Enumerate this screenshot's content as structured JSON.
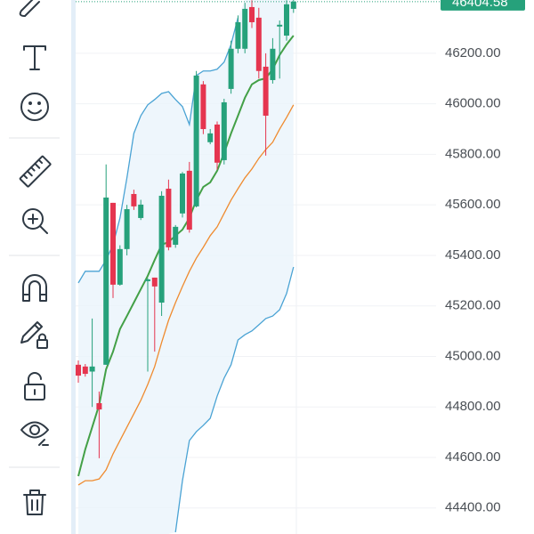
{
  "chart_data": {
    "type": "candlestick",
    "open": [
      44967,
      44960,
      44940,
      44815,
      44967,
      45608,
      45284,
      45425,
      45643,
      45548,
      45298,
      45312,
      45213,
      45664,
      45442,
      45566,
      45735,
      45594,
      46077,
      45848,
      45918,
      45777,
      46059,
      46218,
      46218,
      46383,
      46341,
      46147,
      46094,
      46306,
      46270,
      46376
    ],
    "high": [
      44984,
      44970,
      45150,
      44861,
      45760,
      45608,
      45440,
      45600,
      45660,
      45620,
      45310,
      45312,
      45654,
      45700,
      45520,
      45730,
      45770,
      46130,
      46090,
      45900,
      45930,
      46020,
      46250,
      46350,
      46400,
      46410,
      46380,
      46200,
      46260,
      46330,
      46410,
      46420
    ],
    "low": [
      44896,
      44920,
      44800,
      44597,
      44967,
      45231,
      45280,
      45400,
      45580,
      45540,
      44940,
      45019,
      45160,
      45420,
      45430,
      45550,
      45490,
      45590,
      45880,
      45840,
      45740,
      45760,
      46040,
      46200,
      46200,
      46300,
      46100,
      45795,
      46080,
      46100,
      46250,
      46360
    ],
    "close": [
      44924,
      44931,
      44960,
      44790,
      45629,
      45284,
      45425,
      45583,
      45594,
      45601,
      45305,
      45277,
      45636,
      45432,
      45513,
      45724,
      45502,
      46112,
      45900,
      45883,
      45767,
      46006,
      46218,
      46323,
      46376,
      46323,
      46130,
      45953,
      46218,
      46313,
      46394,
      46404.58
    ],
    "up_color": "#26a17b",
    "down_color": "#e5354f",
    "overlays": [
      {
        "color": "#4aa3d4",
        "values": [
          45291,
          45337,
          45337,
          45337,
          45382,
          45442,
          45548,
          45707,
          45883,
          45953,
          45996,
          46017,
          46041,
          46048,
          46017,
          45989,
          45918,
          46112,
          46130,
          46130,
          46137,
          46165,
          46235,
          46341,
          null,
          null,
          null,
          null,
          null,
          null,
          null,
          null
        ]
      },
      {
        "color": "#4aa3d4",
        "values": [
          null,
          null,
          null,
          null,
          null,
          null,
          null,
          null,
          null,
          null,
          null,
          null,
          null,
          null,
          44304,
          44508,
          44667,
          44702,
          44727,
          44755,
          44843,
          44914,
          44967,
          45065,
          45086,
          45101,
          45125,
          45150,
          45160,
          45185,
          45249,
          45354
        ]
      },
      {
        "color": "#ef8b2f",
        "values": [
          44491,
          44508,
          44508,
          44515,
          44551,
          44614,
          44667,
          44720,
          44773,
          44826,
          44889,
          44960,
          45055,
          45143,
          45213,
          45277,
          45337,
          45389,
          45432,
          45478,
          45513,
          45566,
          45619,
          45664,
          45707,
          45742,
          45784,
          45819,
          45848,
          45900,
          45946,
          45996
        ]
      },
      {
        "color": "#43a047",
        "values": [
          44526,
          44632,
          44720,
          44808,
          44949,
          45019,
          45108,
          45160,
          45213,
          45266,
          45319,
          45382,
          45442,
          45453,
          45478,
          45502,
          45548,
          45619,
          45671,
          45689,
          45735,
          45805,
          45883,
          45953,
          46024,
          46077,
          46094,
          46101,
          46137,
          46193,
          46235,
          46270
        ]
      }
    ],
    "last_price": 46404.58,
    "last_price_color": "#26a17b",
    "ylim": [
      44297,
      46411
    ],
    "yticks": [
      {
        "value": 44400,
        "label": "44400.00"
      },
      {
        "value": 44600,
        "label": "44600.00"
      },
      {
        "value": 44800,
        "label": "44800.00"
      },
      {
        "value": 45000,
        "label": "45000.00"
      },
      {
        "value": 45200,
        "label": "45200.00"
      },
      {
        "value": 45400,
        "label": "45400.00"
      },
      {
        "value": 45600,
        "label": "45600.00"
      },
      {
        "value": 45800,
        "label": "45800.00"
      },
      {
        "value": 46000,
        "label": "46000.00"
      },
      {
        "value": 46200,
        "label": "46200.00"
      }
    ],
    "grid": true
  }
}
